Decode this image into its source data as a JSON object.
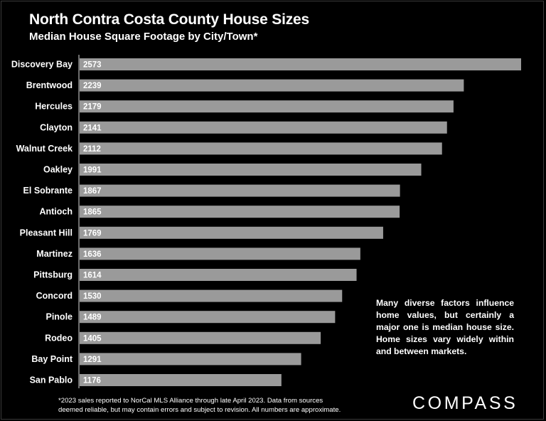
{
  "title": "North Contra Costa County House Sizes",
  "subtitle": "Median House Square Footage by City/Town*",
  "note": "Many diverse factors influence home values, but certainly a major one is median house size. Home sizes vary widely within and between markets.",
  "footnote": {
    "line1": "*2023 sales reported to NorCal MLS Alliance through late April 2023. Data from sources",
    "line2": "deemed reliable, but may contain errors and subject to revision. All numbers are approximate."
  },
  "logo": "COMPASS",
  "colors": {
    "background": "#000000",
    "bar": "#9a9a9a",
    "text": "#ffffff",
    "axis": "#d9d9d9"
  },
  "chart_data": {
    "type": "bar",
    "orientation": "horizontal",
    "categories": [
      "Discovery Bay",
      "Brentwood",
      "Hercules",
      "Clayton",
      "Walnut Creek",
      "Oakley",
      "El Sobrante",
      "Antioch",
      "Pleasant Hill",
      "Martinez",
      "Pittsburg",
      "Concord",
      "Pinole",
      "Rodeo",
      "Bay Point",
      "San Pablo"
    ],
    "values": [
      2573,
      2239,
      2179,
      2141,
      2112,
      1991,
      1867,
      1865,
      1769,
      1636,
      1614,
      1530,
      1489,
      1405,
      1291,
      1176
    ],
    "xlim": [
      0,
      2573
    ],
    "grid": false,
    "data_labels": "inside-left"
  }
}
